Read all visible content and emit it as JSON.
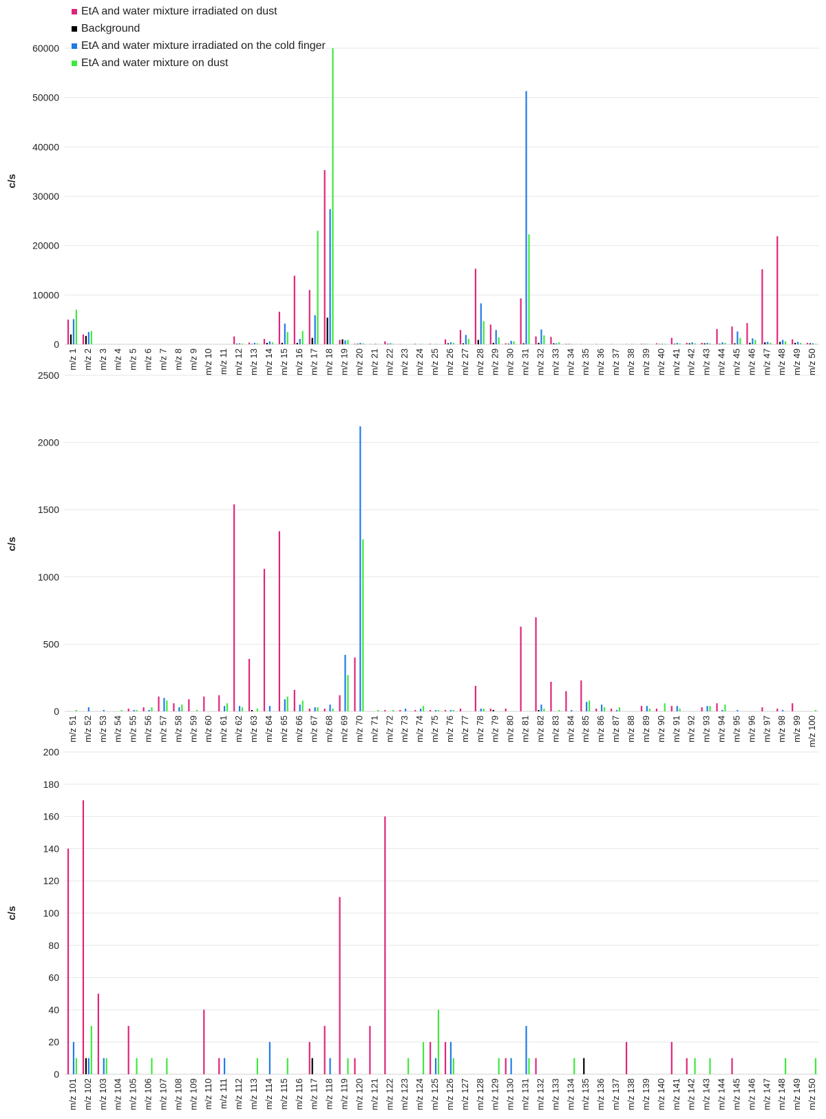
{
  "legend": [
    {
      "label": "EtA and water mixture irradiated on dust",
      "color": "#e0247a"
    },
    {
      "label": "Background",
      "color": "#000000"
    },
    {
      "label": "EtA and water mixture irradiated on the cold finger",
      "color": "#1f7be6"
    },
    {
      "label": "EtA and water mixture on dust",
      "color": "#3ee83e"
    }
  ],
  "chart_data": [
    {
      "type": "bar",
      "ylabel": "c/s",
      "ylim": [
        0,
        60000
      ],
      "yticks": [
        0,
        10000,
        20000,
        30000,
        40000,
        50000,
        60000
      ],
      "grid": true,
      "legend": "top-left",
      "cat_start": 1,
      "cat_count": 50,
      "series": [
        {
          "name": "EtA and water mixture irradiated on dust",
          "color": "#e0247a",
          "values": [
            5000,
            2000,
            0,
            0,
            0,
            0,
            0,
            0,
            0,
            0,
            0,
            1600,
            350,
            1100,
            6600,
            13900,
            11000,
            35300,
            900,
            100,
            50,
            600,
            50,
            100,
            100,
            1000,
            2900,
            15300,
            4000,
            200,
            9300,
            1600,
            1500,
            100,
            50,
            50,
            50,
            50,
            100,
            200,
            1300,
            300,
            300,
            3100,
            3600,
            4300,
            15200,
            21900,
            1000,
            300
          ]
        },
        {
          "name": "Background",
          "color": "#000000",
          "values": [
            2000,
            1700,
            0,
            0,
            0,
            0,
            0,
            0,
            0,
            0,
            0,
            100,
            50,
            300,
            300,
            300,
            1300,
            5400,
            1000,
            100,
            0,
            100,
            0,
            0,
            0,
            200,
            200,
            900,
            300,
            100,
            200,
            300,
            200,
            50,
            0,
            0,
            0,
            0,
            50,
            50,
            100,
            200,
            200,
            100,
            200,
            300,
            400,
            500,
            300,
            200
          ]
        },
        {
          "name": "EtA and water mixture irradiated on the cold finger",
          "color": "#1f7be6",
          "values": [
            5100,
            2500,
            0,
            0,
            0,
            0,
            0,
            0,
            0,
            0,
            0,
            200,
            300,
            600,
            4200,
            1100,
            5900,
            27400,
            800,
            300,
            100,
            200,
            0,
            50,
            50,
            400,
            1900,
            8300,
            2900,
            700,
            51300,
            3000,
            200,
            50,
            0,
            0,
            0,
            50,
            50,
            100,
            300,
            400,
            300,
            400,
            2600,
            1200,
            500,
            900,
            500,
            200
          ]
        },
        {
          "name": "EtA and water mixture on dust",
          "color": "#3ee83e",
          "values": [
            7000,
            2700,
            0,
            0,
            0,
            0,
            0,
            0,
            0,
            0,
            0,
            150,
            200,
            400,
            2500,
            2700,
            23000,
            60000,
            900,
            200,
            50,
            100,
            0,
            50,
            50,
            300,
            1100,
            4700,
            1400,
            600,
            22300,
            1800,
            400,
            50,
            0,
            0,
            0,
            50,
            50,
            100,
            200,
            200,
            200,
            300,
            1300,
            900,
            300,
            600,
            300,
            100
          ]
        }
      ]
    },
    {
      "type": "bar",
      "ylabel": "c/s",
      "ylim": [
        0,
        2500
      ],
      "yticks": [
        0,
        500,
        1000,
        1500,
        2000,
        2500
      ],
      "grid": true,
      "cat_start": 51,
      "cat_count": 50,
      "series": [
        {
          "name": "EtA and water mixture irradiated on dust",
          "color": "#e0247a",
          "values": [
            0,
            0,
            0,
            0,
            20,
            30,
            110,
            60,
            90,
            110,
            120,
            1540,
            390,
            1060,
            1340,
            160,
            20,
            20,
            120,
            400,
            0,
            10,
            10,
            10,
            10,
            10,
            20,
            190,
            20,
            20,
            630,
            700,
            220,
            150,
            230,
            20,
            20,
            0,
            40,
            20,
            40,
            0,
            30,
            60,
            0,
            0,
            30,
            20,
            60,
            0
          ]
        },
        {
          "name": "Background",
          "color": "#000000",
          "values": [
            0,
            0,
            0,
            0,
            0,
            0,
            0,
            0,
            0,
            0,
            0,
            0,
            10,
            0,
            0,
            0,
            0,
            0,
            0,
            0,
            0,
            0,
            0,
            0,
            0,
            0,
            0,
            0,
            10,
            0,
            0,
            10,
            0,
            0,
            0,
            0,
            0,
            0,
            0,
            0,
            0,
            0,
            0,
            0,
            0,
            0,
            0,
            0,
            0,
            0
          ]
        },
        {
          "name": "EtA and water mixture irradiated on the cold finger",
          "color": "#1f7be6",
          "values": [
            0,
            30,
            10,
            0,
            10,
            10,
            100,
            30,
            0,
            0,
            40,
            40,
            0,
            40,
            90,
            50,
            30,
            50,
            420,
            2120,
            0,
            0,
            20,
            20,
            10,
            10,
            0,
            20,
            0,
            0,
            0,
            50,
            0,
            10,
            70,
            50,
            10,
            0,
            40,
            0,
            40,
            0,
            40,
            10,
            10,
            0,
            0,
            10,
            0,
            0
          ]
        },
        {
          "name": "EtA and water mixture on dust",
          "color": "#3ee83e",
          "values": [
            10,
            0,
            0,
            10,
            10,
            30,
            80,
            50,
            10,
            0,
            60,
            30,
            20,
            0,
            110,
            80,
            30,
            20,
            270,
            1280,
            10,
            10,
            0,
            40,
            10,
            10,
            0,
            20,
            0,
            0,
            0,
            20,
            10,
            0,
            80,
            30,
            30,
            0,
            20,
            60,
            20,
            0,
            40,
            50,
            0,
            0,
            0,
            0,
            0,
            10
          ]
        }
      ]
    },
    {
      "type": "bar",
      "ylabel": "c/s",
      "ylim": [
        0,
        200
      ],
      "yticks": [
        0,
        20,
        40,
        60,
        80,
        100,
        120,
        140,
        160,
        180,
        200
      ],
      "grid": true,
      "cat_start": 101,
      "cat_count": 50,
      "series": [
        {
          "name": "EtA and water mixture irradiated on dust",
          "color": "#e0247a",
          "values": [
            140,
            170,
            50,
            0,
            30,
            0,
            0,
            0,
            0,
            40,
            10,
            0,
            0,
            0,
            0,
            0,
            20,
            30,
            110,
            10,
            30,
            160,
            0,
            0,
            20,
            20,
            0,
            0,
            0,
            10,
            0,
            10,
            0,
            0,
            0,
            0,
            0,
            20,
            0,
            0,
            20,
            10,
            0,
            0,
            10,
            0,
            0,
            0,
            0,
            0
          ]
        },
        {
          "name": "Background",
          "color": "#000000",
          "values": [
            0,
            10,
            0,
            0,
            0,
            0,
            0,
            0,
            0,
            0,
            0,
            0,
            0,
            0,
            0,
            0,
            10,
            0,
            0,
            0,
            0,
            0,
            0,
            0,
            0,
            0,
            0,
            0,
            0,
            0,
            0,
            0,
            0,
            0,
            10,
            0,
            0,
            0,
            0,
            0,
            0,
            0,
            0,
            0,
            0,
            0,
            0,
            0,
            0,
            0
          ]
        },
        {
          "name": "EtA and water mixture irradiated on the cold finger",
          "color": "#1f7be6",
          "values": [
            20,
            10,
            10,
            0,
            0,
            0,
            0,
            0,
            0,
            0,
            10,
            0,
            0,
            20,
            0,
            0,
            0,
            10,
            0,
            0,
            0,
            0,
            0,
            0,
            10,
            20,
            0,
            0,
            0,
            10,
            30,
            0,
            0,
            0,
            0,
            0,
            0,
            0,
            0,
            0,
            0,
            0,
            0,
            0,
            0,
            0,
            0,
            0,
            0,
            0
          ]
        },
        {
          "name": "EtA and water mixture on dust",
          "color": "#3ee83e",
          "values": [
            10,
            30,
            10,
            0,
            10,
            10,
            10,
            0,
            0,
            0,
            0,
            0,
            10,
            0,
            10,
            0,
            0,
            0,
            10,
            0,
            0,
            0,
            10,
            20,
            40,
            10,
            0,
            0,
            10,
            0,
            10,
            0,
            0,
            10,
            0,
            0,
            0,
            0,
            0,
            0,
            0,
            10,
            10,
            0,
            0,
            0,
            0,
            10,
            0,
            10
          ]
        }
      ]
    }
  ]
}
